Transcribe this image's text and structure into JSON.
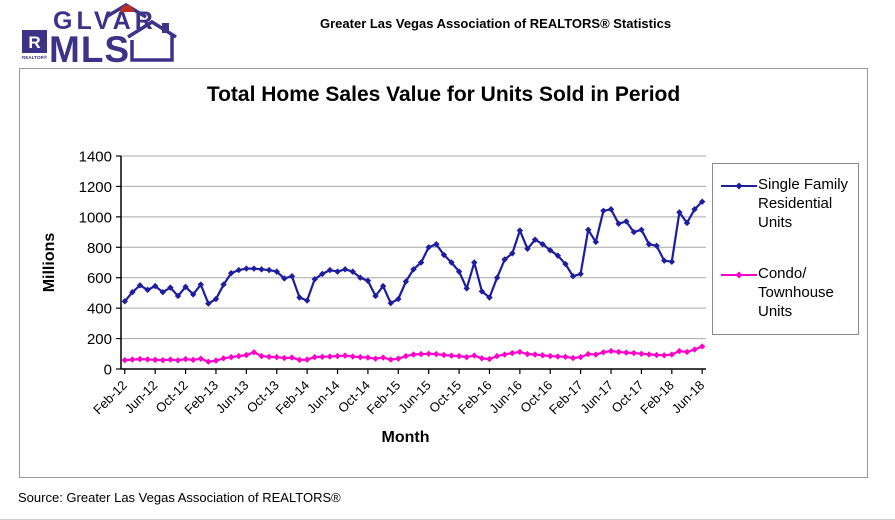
{
  "page": {
    "header_title": "Greater Las Vegas Association of REALTORS® Statistics",
    "source_note": "Source: Greater Las Vegas Association of REALTORS®"
  },
  "logo": {
    "line1": "GLVAR",
    "line2": "MLS",
    "realtor_r": "R",
    "realtor_word": "REALTOR®",
    "navy": "#3c3389",
    "red": "#bb2f25"
  },
  "chart": {
    "title": "Total Home Sales Value for Units Sold in Period"
  },
  "legend": {
    "items": [
      {
        "label": "Single Family\nResidential\nUnits",
        "color": "#1d1da0"
      },
      {
        "label": "Condo/\nTownhouse\nUnits",
        "color": "#ff00cc"
      }
    ]
  },
  "chart_data": {
    "type": "line",
    "title": "Total Home Sales Value for Units Sold in Period",
    "xlabel": "Month",
    "ylabel": "Millions",
    "ylim": [
      0,
      1400
    ],
    "ytick_step": 200,
    "grid": true,
    "legend_position": "right",
    "x_label_every": 4,
    "x_labels_shown": [
      "Feb-12",
      "Jun-12",
      "Oct-12",
      "Feb-13",
      "Jun-13",
      "Oct-13",
      "Feb-14",
      "Jun-14",
      "Oct-14",
      "Feb-15",
      "Jun-15",
      "Oct-15",
      "Feb-16",
      "Jun-16",
      "Oct-16",
      "Feb-17",
      "Jun-17",
      "Oct-17",
      "Feb-18",
      "Jun-18"
    ],
    "categories": [
      "Feb-12",
      "Mar-12",
      "Apr-12",
      "May-12",
      "Jun-12",
      "Jul-12",
      "Aug-12",
      "Sep-12",
      "Oct-12",
      "Nov-12",
      "Dec-12",
      "Jan-13",
      "Feb-13",
      "Mar-13",
      "Apr-13",
      "May-13",
      "Jun-13",
      "Jul-13",
      "Aug-13",
      "Sep-13",
      "Oct-13",
      "Nov-13",
      "Dec-13",
      "Jan-14",
      "Feb-14",
      "Mar-14",
      "Apr-14",
      "May-14",
      "Jun-14",
      "Jul-14",
      "Aug-14",
      "Sep-14",
      "Oct-14",
      "Nov-14",
      "Dec-14",
      "Jan-15",
      "Feb-15",
      "Mar-15",
      "Apr-15",
      "May-15",
      "Jun-15",
      "Jul-15",
      "Aug-15",
      "Sep-15",
      "Oct-15",
      "Nov-15",
      "Dec-15",
      "Jan-16",
      "Feb-16",
      "Mar-16",
      "Apr-16",
      "May-16",
      "Jun-16",
      "Jul-16",
      "Aug-16",
      "Sep-16",
      "Oct-16",
      "Nov-16",
      "Dec-16",
      "Jan-17",
      "Feb-17",
      "Mar-17",
      "Apr-17",
      "May-17",
      "Jun-17",
      "Jul-17",
      "Aug-17",
      "Sep-17",
      "Oct-17",
      "Nov-17",
      "Dec-17",
      "Jan-18",
      "Feb-18",
      "Mar-18",
      "Apr-18",
      "May-18",
      "Jun-18"
    ],
    "series": [
      {
        "name": "Single Family Residential Units",
        "color": "#1d1da0",
        "marker": "diamond",
        "values": [
          445,
          505,
          550,
          520,
          545,
          505,
          535,
          480,
          540,
          490,
          555,
          430,
          460,
          555,
          630,
          650,
          660,
          660,
          655,
          650,
          640,
          595,
          610,
          470,
          450,
          590,
          625,
          650,
          640,
          655,
          640,
          600,
          580,
          480,
          545,
          433,
          460,
          575,
          655,
          700,
          800,
          820,
          750,
          700,
          640,
          530,
          700,
          510,
          470,
          600,
          720,
          760,
          910,
          790,
          850,
          820,
          780,
          745,
          690,
          610,
          625,
          915,
          835,
          1040,
          1050,
          955,
          970,
          900,
          915,
          820,
          810,
          712,
          705,
          1030,
          960,
          1050,
          1100
        ]
      },
      {
        "name": "Condo/Townhouse Units",
        "color": "#ff00cc",
        "marker": "diamond",
        "values": [
          58,
          62,
          65,
          63,
          60,
          58,
          62,
          57,
          65,
          60,
          68,
          48,
          55,
          70,
          78,
          85,
          92,
          110,
          85,
          80,
          78,
          72,
          75,
          60,
          62,
          78,
          80,
          82,
          85,
          88,
          82,
          78,
          75,
          68,
          75,
          62,
          68,
          85,
          95,
          98,
          100,
          98,
          92,
          88,
          85,
          78,
          88,
          70,
          65,
          85,
          95,
          105,
          112,
          98,
          95,
          90,
          85,
          82,
          80,
          72,
          78,
          98,
          95,
          110,
          118,
          112,
          108,
          105,
          100,
          96,
          92,
          90,
          95,
          118,
          112,
          128,
          148
        ]
      }
    ]
  }
}
